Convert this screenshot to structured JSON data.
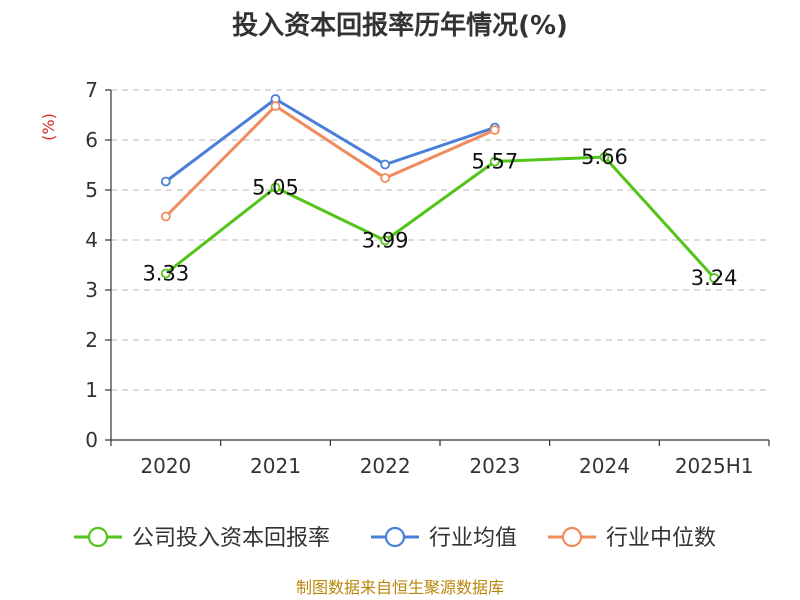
{
  "chart_data": {
    "type": "line",
    "title": "投入资本回报率历年情况(%)",
    "ylabel": "(%)",
    "xlabel": "",
    "categories": [
      "2020",
      "2021",
      "2022",
      "2023",
      "2024",
      "2025H1"
    ],
    "ylim": [
      0,
      7
    ],
    "yticks": [
      0,
      1,
      2,
      3,
      4,
      5,
      6,
      7
    ],
    "grid": true,
    "legend_position": "bottom",
    "series": [
      {
        "name": "公司投入资本回报率",
        "color": "#52c41a",
        "values": [
          3.33,
          5.05,
          3.99,
          5.57,
          5.66,
          3.24
        ],
        "labels": [
          "3.33",
          "5.05",
          "3.99",
          "5.57",
          "5.66",
          "3.24"
        ]
      },
      {
        "name": "行业均值",
        "color": "#4a7fd8",
        "values": [
          5.17,
          6.82,
          5.51,
          6.25,
          null,
          null
        ]
      },
      {
        "name": "行业中位数",
        "color": "#f28b5c",
        "values": [
          4.47,
          6.68,
          5.24,
          6.2,
          null,
          null
        ]
      }
    ]
  },
  "footnote": "制图数据来自恒生聚源数据库",
  "colors": {
    "axis": "#333333",
    "grid": "#c8c8c8",
    "ylabel": "#d42a2a",
    "footnote": "#b8860b"
  }
}
